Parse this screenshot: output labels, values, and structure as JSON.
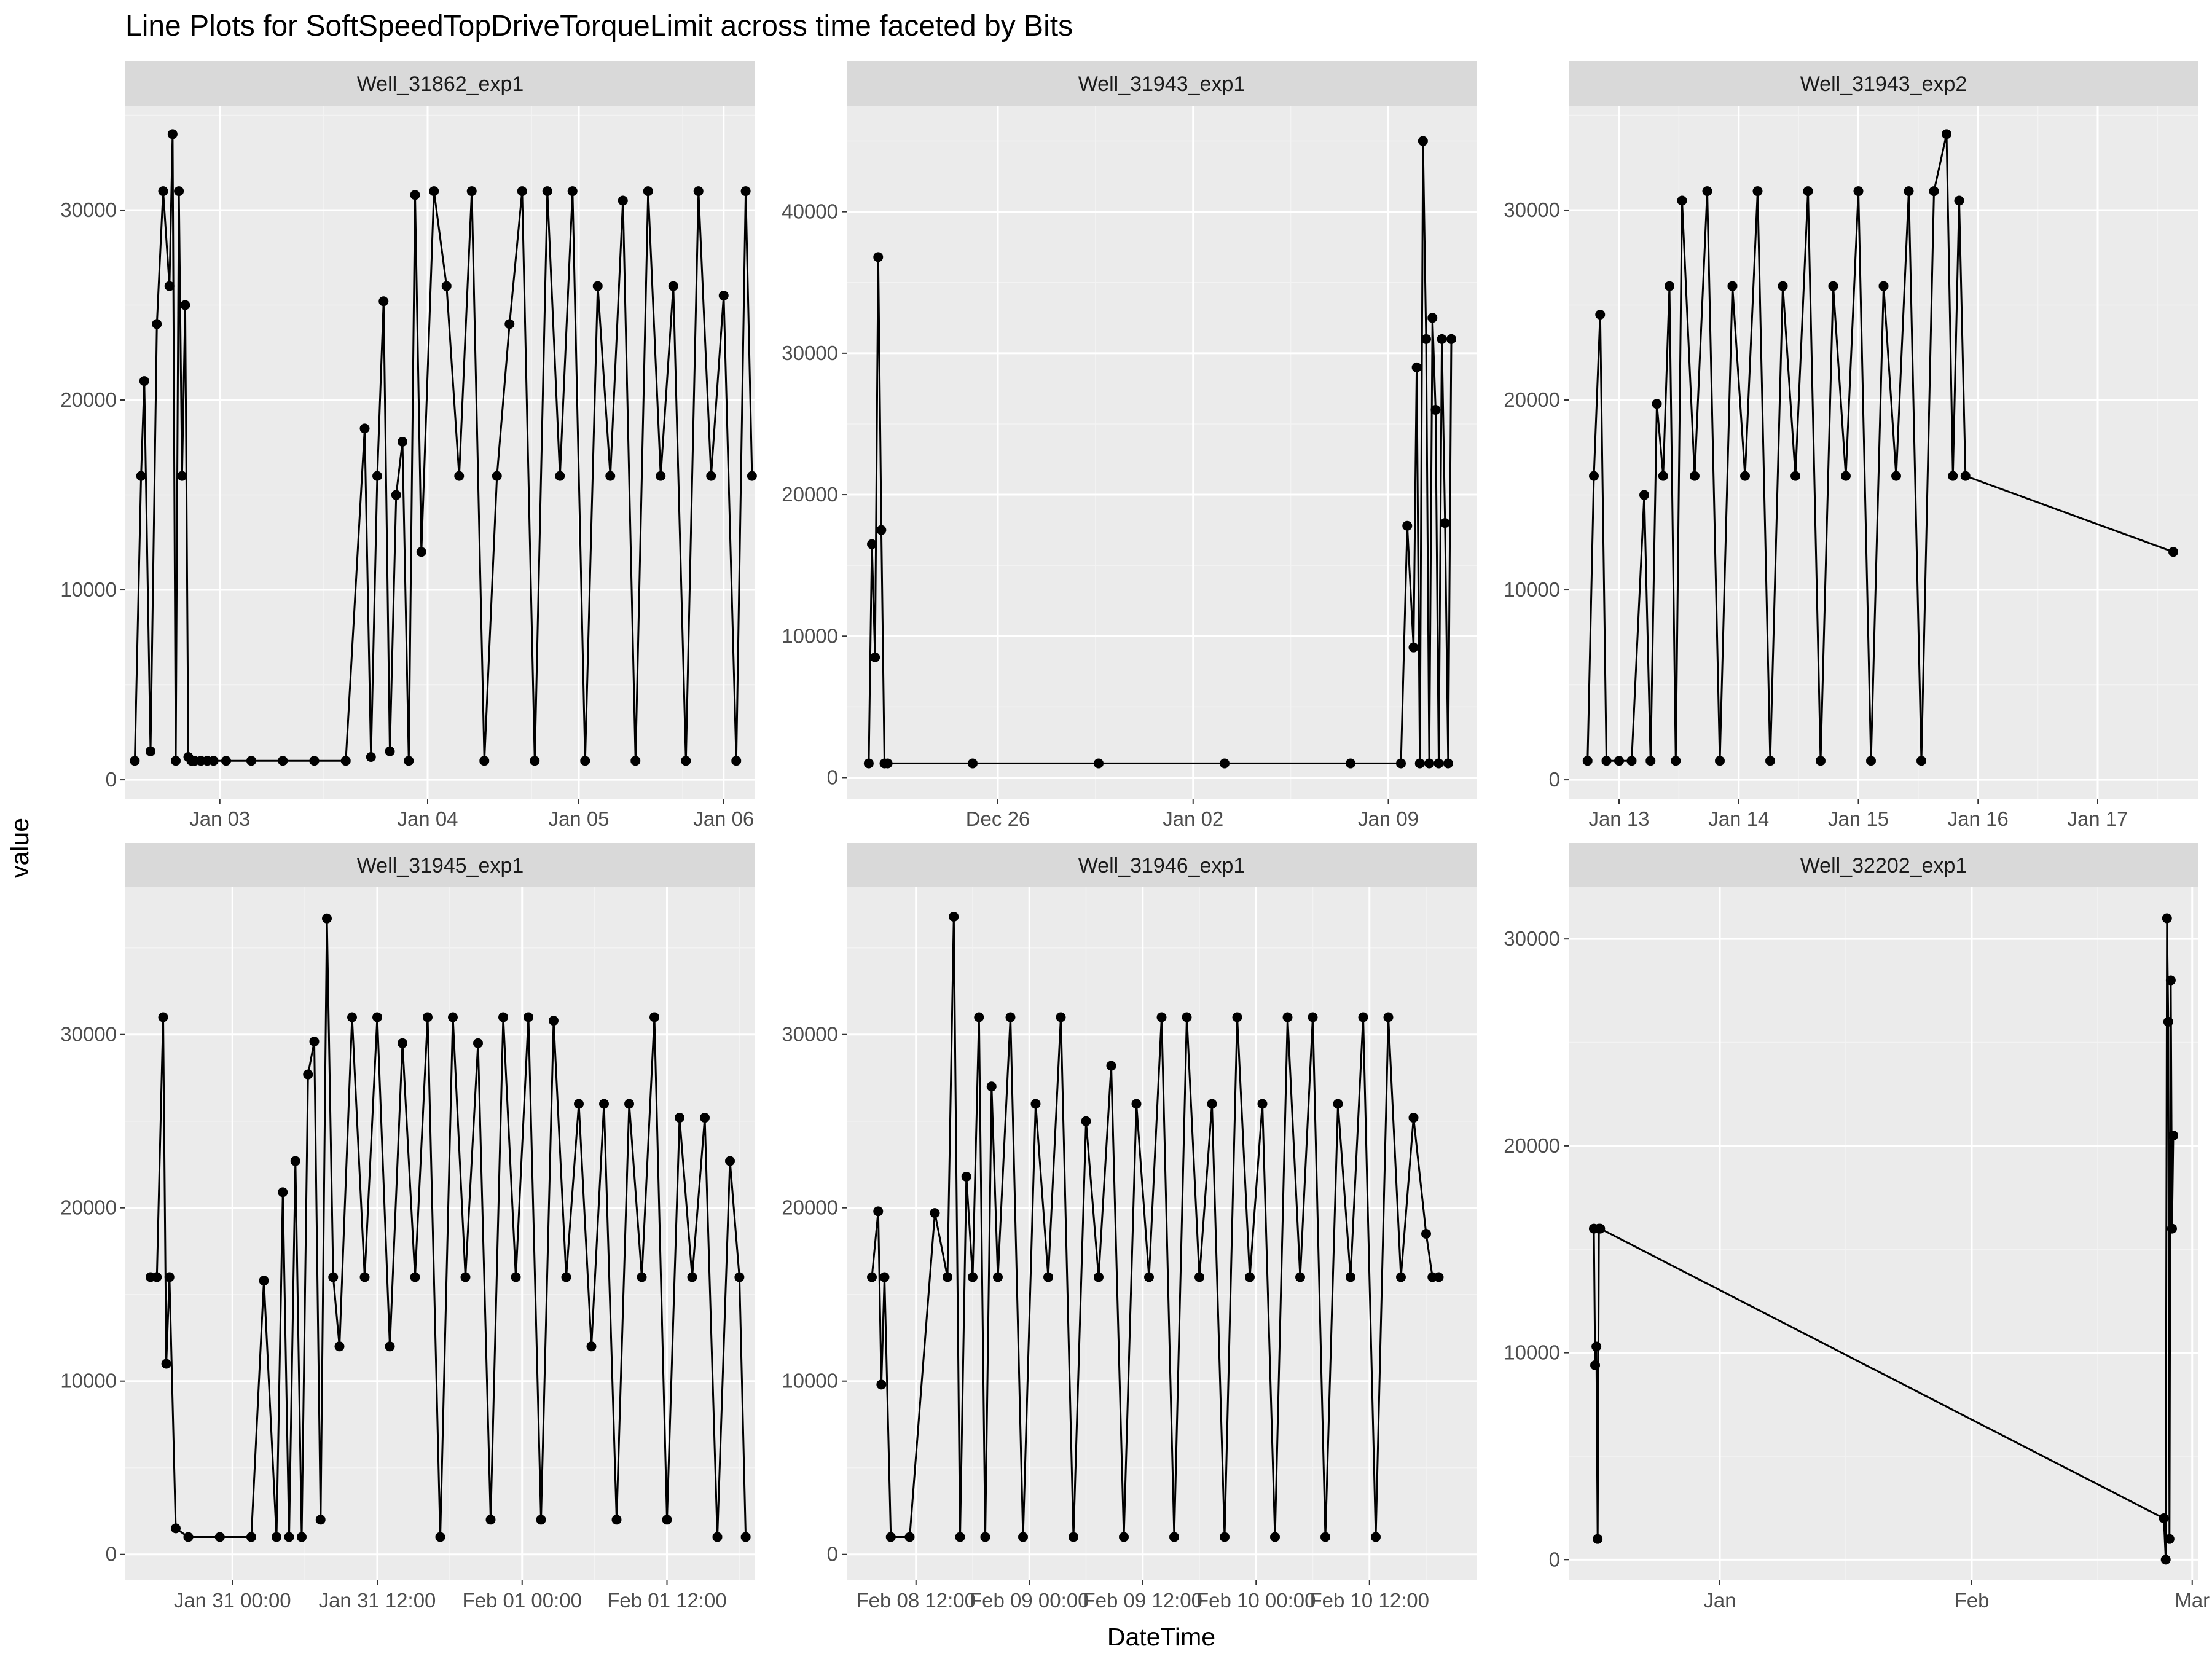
{
  "chart_data": {
    "type": "line",
    "title": "Line Plots for  SoftSpeedTopDriveTorqueLimit  across time faceted by Bits",
    "xlabel": "DateTime",
    "ylabel": "value",
    "grid": true,
    "legend": "none",
    "colors": {
      "panel_bg": "#ebebeb",
      "strip_bg": "#d9d9d9",
      "grid_major": "#ffffff",
      "grid_minor": "#f3f3f3",
      "series": "#000000"
    },
    "panels": [
      {
        "name": "Well_31862_exp1",
        "xlim": [
          0,
          10
        ],
        "ylim": [
          -1000,
          35500
        ],
        "x_ticks": [
          {
            "x": 1.5,
            "label": "Jan 03"
          },
          {
            "x": 4.8,
            "label": "Jan 04"
          },
          {
            "x": 7.2,
            "label": "Jan 05"
          },
          {
            "x": 9.5,
            "label": "Jan 06"
          }
        ],
        "y_ticks": [
          0,
          10000,
          20000,
          30000
        ],
        "x": [
          0.15,
          0.25,
          0.3,
          0.4,
          0.5,
          0.6,
          0.7,
          0.75,
          0.8,
          0.85,
          0.9,
          0.95,
          1.0,
          1.05,
          1.1,
          1.2,
          1.3,
          1.4,
          1.6,
          2.0,
          2.5,
          3.0,
          3.5,
          3.8,
          3.9,
          4.0,
          4.1,
          4.2,
          4.3,
          4.4,
          4.5,
          4.6,
          4.7,
          4.9,
          5.1,
          5.3,
          5.5,
          5.7,
          5.9,
          6.1,
          6.3,
          6.5,
          6.7,
          6.9,
          7.1,
          7.3,
          7.5,
          7.7,
          7.9,
          8.1,
          8.3,
          8.5,
          8.7,
          8.9,
          9.1,
          9.3,
          9.5,
          9.7,
          9.85,
          9.95
        ],
        "values": [
          1000,
          16000,
          21000,
          1500,
          24000,
          31000,
          26000,
          34000,
          1000,
          31000,
          16000,
          25000,
          1200,
          1000,
          1000,
          1000,
          1000,
          1000,
          1000,
          1000,
          1000,
          1000,
          1000,
          18500,
          1200,
          16000,
          25200,
          1500,
          15000,
          17800,
          1000,
          30800,
          12000,
          31000,
          26000,
          16000,
          31000,
          1000,
          16000,
          24000,
          31000,
          1000,
          31000,
          16000,
          31000,
          1000,
          26000,
          16000,
          30500,
          1000,
          31000,
          16000,
          26000,
          1000,
          31000,
          16000,
          25500,
          1000,
          31000,
          16000
        ]
      },
      {
        "name": "Well_31943_exp1",
        "xlim": [
          0,
          10
        ],
        "ylim": [
          -1500,
          47500
        ],
        "x_ticks": [
          {
            "x": 2.4,
            "label": "Dec 26"
          },
          {
            "x": 5.5,
            "label": "Jan 02"
          },
          {
            "x": 8.6,
            "label": "Jan 09"
          }
        ],
        "y_ticks": [
          0,
          10000,
          20000,
          30000,
          40000
        ],
        "x": [
          0.35,
          0.4,
          0.45,
          0.5,
          0.55,
          0.6,
          0.65,
          2.0,
          4.0,
          6.0,
          8.0,
          8.8,
          8.9,
          9.0,
          9.05,
          9.1,
          9.15,
          9.2,
          9.25,
          9.3,
          9.35,
          9.4,
          9.45,
          9.5,
          9.55,
          9.6
        ],
        "values": [
          1000,
          16500,
          8500,
          36800,
          17500,
          1000,
          1000,
          1000,
          1000,
          1000,
          1000,
          1000,
          17800,
          9200,
          29000,
          1000,
          45000,
          31000,
          1000,
          32500,
          26000,
          1000,
          31000,
          18000,
          1000,
          31000
        ]
      },
      {
        "name": "Well_31943_exp2",
        "xlim": [
          0,
          10
        ],
        "ylim": [
          -1000,
          35500
        ],
        "x_ticks": [
          {
            "x": 0.8,
            "label": "Jan 13"
          },
          {
            "x": 2.7,
            "label": "Jan 14"
          },
          {
            "x": 4.6,
            "label": "Jan 15"
          },
          {
            "x": 6.5,
            "label": "Jan 16"
          },
          {
            "x": 8.4,
            "label": "Jan 17"
          }
        ],
        "y_ticks": [
          0,
          10000,
          20000,
          30000
        ],
        "x": [
          0.3,
          0.4,
          0.5,
          0.6,
          0.8,
          1.0,
          1.2,
          1.3,
          1.4,
          1.5,
          1.6,
          1.7,
          1.8,
          2.0,
          2.2,
          2.4,
          2.6,
          2.8,
          3.0,
          3.2,
          3.4,
          3.6,
          3.8,
          4.0,
          4.2,
          4.4,
          4.6,
          4.8,
          5.0,
          5.2,
          5.4,
          5.6,
          5.8,
          6.0,
          6.1,
          6.2,
          6.3,
          9.6
        ],
        "values": [
          1000,
          16000,
          24500,
          1000,
          1000,
          1000,
          15000,
          1000,
          19800,
          16000,
          26000,
          1000,
          30500,
          16000,
          31000,
          1000,
          26000,
          16000,
          31000,
          1000,
          26000,
          16000,
          31000,
          1000,
          26000,
          16000,
          31000,
          1000,
          26000,
          16000,
          31000,
          1000,
          31000,
          34000,
          16000,
          30500,
          16000,
          12000
        ]
      },
      {
        "name": "Well_31945_exp1",
        "xlim": [
          0,
          10
        ],
        "ylim": [
          -1500,
          38500
        ],
        "x_ticks": [
          {
            "x": 1.7,
            "label": "Jan 31 00:00"
          },
          {
            "x": 4.0,
            "label": "Jan 31 12:00"
          },
          {
            "x": 6.3,
            "label": "Feb 01 00:00"
          },
          {
            "x": 8.6,
            "label": "Feb 01 12:00"
          }
        ],
        "y_ticks": [
          0,
          10000,
          20000,
          30000
        ],
        "x": [
          0.4,
          0.5,
          0.6,
          0.65,
          0.7,
          0.8,
          1.0,
          1.5,
          2.0,
          2.2,
          2.4,
          2.5,
          2.6,
          2.7,
          2.8,
          2.9,
          3.0,
          3.1,
          3.2,
          3.3,
          3.4,
          3.6,
          3.8,
          4.0,
          4.2,
          4.4,
          4.6,
          4.8,
          5.0,
          5.2,
          5.4,
          5.6,
          5.8,
          6.0,
          6.2,
          6.4,
          6.6,
          6.8,
          7.0,
          7.2,
          7.4,
          7.6,
          7.8,
          8.0,
          8.2,
          8.4,
          8.6,
          8.8,
          9.0,
          9.2,
          9.4,
          9.6,
          9.75,
          9.85
        ],
        "values": [
          16000,
          16000,
          31000,
          11000,
          16000,
          1500,
          1000,
          1000,
          1000,
          15800,
          1000,
          20900,
          1000,
          22700,
          1000,
          27700,
          29600,
          2000,
          36700,
          16000,
          12000,
          31000,
          16000,
          31000,
          12000,
          29500,
          16000,
          31000,
          1000,
          31000,
          16000,
          29500,
          2000,
          31000,
          16000,
          31000,
          2000,
          30800,
          16000,
          26000,
          12000,
          26000,
          2000,
          26000,
          16000,
          31000,
          2000,
          25200,
          16000,
          25200,
          1000,
          22700,
          16000,
          1000
        ]
      },
      {
        "name": "Well_31946_exp1",
        "xlim": [
          0,
          10
        ],
        "ylim": [
          -1500,
          38500
        ],
        "x_ticks": [
          {
            "x": 1.1,
            "label": "Feb 08 12:00"
          },
          {
            "x": 2.9,
            "label": "Feb 09 00:00"
          },
          {
            "x": 4.7,
            "label": "Feb 09 12:00"
          },
          {
            "x": 6.5,
            "label": "Feb 10 00:00"
          },
          {
            "x": 8.3,
            "label": "Feb 10 12:00"
          }
        ],
        "y_ticks": [
          0,
          10000,
          20000,
          30000
        ],
        "x": [
          0.4,
          0.5,
          0.55,
          0.6,
          0.7,
          1.0,
          1.4,
          1.6,
          1.7,
          1.8,
          1.9,
          2.0,
          2.1,
          2.2,
          2.3,
          2.4,
          2.6,
          2.8,
          3.0,
          3.2,
          3.4,
          3.6,
          3.8,
          4.0,
          4.2,
          4.4,
          4.6,
          4.8,
          5.0,
          5.2,
          5.4,
          5.6,
          5.8,
          6.0,
          6.2,
          6.4,
          6.6,
          6.8,
          7.0,
          7.2,
          7.4,
          7.6,
          7.8,
          8.0,
          8.2,
          8.4,
          8.6,
          8.8,
          9.0,
          9.2,
          9.3,
          9.4
        ],
        "values": [
          16000,
          19800,
          9800,
          16000,
          1000,
          1000,
          19700,
          16000,
          36800,
          1000,
          21800,
          16000,
          31000,
          1000,
          27000,
          16000,
          31000,
          1000,
          26000,
          16000,
          31000,
          1000,
          25000,
          16000,
          28200,
          1000,
          26000,
          16000,
          31000,
          1000,
          31000,
          16000,
          26000,
          1000,
          31000,
          16000,
          26000,
          1000,
          31000,
          16000,
          31000,
          1000,
          26000,
          16000,
          31000,
          1000,
          31000,
          16000,
          25200,
          18500,
          16000,
          16000
        ]
      },
      {
        "name": "Well_32202_exp1",
        "xlim": [
          0,
          10
        ],
        "ylim": [
          -1000,
          32500
        ],
        "x_ticks": [
          {
            "x": 2.4,
            "label": "Jan"
          },
          {
            "x": 6.4,
            "label": "Feb"
          },
          {
            "x": 9.9,
            "label": "Mar"
          }
        ],
        "y_ticks": [
          0,
          10000,
          20000,
          30000
        ],
        "x": [
          0.4,
          0.42,
          0.44,
          0.46,
          0.48,
          0.5,
          9.45,
          9.48,
          9.5,
          9.52,
          9.54,
          9.56,
          9.58,
          9.6
        ],
        "values": [
          16000,
          9400,
          10300,
          1000,
          16000,
          16000,
          2000,
          0,
          31000,
          26000,
          1000,
          28000,
          16000,
          20500
        ]
      }
    ]
  }
}
